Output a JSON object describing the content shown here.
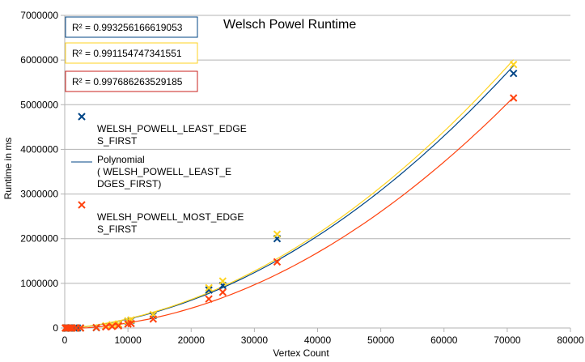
{
  "chart_data": {
    "type": "scatter",
    "title": "Welsch Powel Runtime",
    "xlabel": "Vertex Count",
    "ylabel": "Runtime in ms",
    "xlim": [
      0,
      80000
    ],
    "ylim": [
      0,
      7000000
    ],
    "x_ticks": [
      0,
      10000,
      20000,
      30000,
      40000,
      50000,
      60000,
      70000,
      80000
    ],
    "y_ticks": [
      0,
      1000000,
      2000000,
      3000000,
      4000000,
      5000000,
      6000000,
      7000000
    ],
    "grid": "horizontal",
    "legend_position": "left",
    "series": [
      {
        "name": "WELSH_POWELL_LEAST_EDGES_FIRST",
        "color": "#004586",
        "marker": "x",
        "trend": {
          "type": "polynomial",
          "color": "#004586",
          "r2": "R² = 0.993256166619053",
          "a": 0.001,
          "b": 12,
          "c": -20000
        },
        "points": [
          [
            100,
            0
          ],
          [
            200,
            0
          ],
          [
            400,
            0
          ],
          [
            600,
            0
          ],
          [
            800,
            0
          ],
          [
            1000,
            0
          ],
          [
            1500,
            0
          ],
          [
            2000,
            0
          ],
          [
            2500,
            0
          ],
          [
            5000,
            5000
          ],
          [
            6500,
            40000
          ],
          [
            7500,
            60000
          ],
          [
            8500,
            80000
          ],
          [
            10000,
            150000
          ],
          [
            10500,
            170000
          ],
          [
            14000,
            280000
          ],
          [
            22800,
            850000
          ],
          [
            25000,
            950000
          ],
          [
            33600,
            2000000
          ],
          [
            71000,
            5700000
          ]
        ]
      },
      {
        "name": "",
        "color": "#ffd320",
        "marker": "x",
        "trend": {
          "type": "polynomial",
          "color": "#ffd320",
          "r2": "R² = 0.991154747341551",
          "a": 0.00102,
          "b": 12.5,
          "c": -20000
        },
        "points": [
          [
            100,
            0
          ],
          [
            300,
            0
          ],
          [
            600,
            0
          ],
          [
            900,
            0
          ],
          [
            1200,
            0
          ],
          [
            1800,
            0
          ],
          [
            2500,
            0
          ],
          [
            5000,
            10000
          ],
          [
            6500,
            50000
          ],
          [
            7500,
            70000
          ],
          [
            8500,
            90000
          ],
          [
            10000,
            160000
          ],
          [
            10500,
            180000
          ],
          [
            14000,
            300000
          ],
          [
            22800,
            900000
          ],
          [
            25000,
            1050000
          ],
          [
            33600,
            2100000
          ],
          [
            71000,
            5900000
          ]
        ]
      },
      {
        "name": "WELSH_POWELL_MOST_EDGES_FIRST",
        "color": "#ff420e",
        "marker": "x",
        "trend": {
          "type": "polynomial",
          "color": "#ff420e",
          "r2": "R² = 0.997686263529185",
          "a": 0.00098,
          "b": 3.5,
          "c": -20000
        },
        "points": [
          [
            100,
            0
          ],
          [
            300,
            0
          ],
          [
            600,
            0
          ],
          [
            900,
            0
          ],
          [
            1200,
            0
          ],
          [
            1800,
            0
          ],
          [
            2500,
            0
          ],
          [
            5000,
            10000
          ],
          [
            6500,
            25000
          ],
          [
            7500,
            35000
          ],
          [
            8500,
            50000
          ],
          [
            10000,
            90000
          ],
          [
            10500,
            100000
          ],
          [
            14000,
            200000
          ],
          [
            22800,
            650000
          ],
          [
            25000,
            800000
          ],
          [
            33600,
            1480000
          ],
          [
            71000,
            5150000
          ]
        ]
      }
    ],
    "legend": {
      "entry1": "WELSH_POWELL_LEAST_EDGES_FIRST",
      "entry2": "Polynomial ( WELSH_POWELL_LEAST_EDGES_FIRST)",
      "entry3": "WELSH_POWELL_MOST_EDGES_FIRST"
    }
  }
}
